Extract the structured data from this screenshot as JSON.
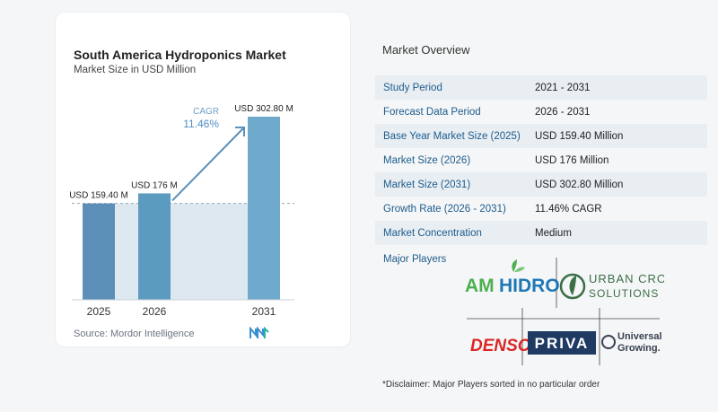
{
  "chart_data": {
    "type": "bar",
    "title": "South America Hydroponics Market",
    "subtitle": "Market Size in USD Million",
    "categories": [
      "2025",
      "2026",
      "2031"
    ],
    "values": [
      159.4,
      176,
      302.8
    ],
    "data_labels": [
      "USD 159.40 M",
      "USD 176 M",
      "USD 302.80 M"
    ],
    "cagr_label": "CAGR",
    "cagr_value": "11.46%",
    "ylim": [
      0,
      302.8
    ],
    "grid": false,
    "bar_colors": [
      "#5b8fb8",
      "#5b9bc0",
      "#6fa9cc"
    ]
  },
  "source": "Source:  Mordor Intelligence",
  "overview": {
    "title": "Market Overview",
    "rows": [
      {
        "label": "Study Period",
        "value": "2021 - 2031"
      },
      {
        "label": "Forecast Data Period",
        "value": "2026 - 2031"
      },
      {
        "label": "Base Year Market Size (2025)",
        "value": "USD 159.40 Million"
      },
      {
        "label": "Market Size (2026)",
        "value": "USD 176 Million"
      },
      {
        "label": "Market Size (2031)",
        "value": "USD 302.80 Million"
      },
      {
        "label": "Growth Rate (2026 - 2031)",
        "value": "11.46% CAGR"
      },
      {
        "label": "Market Concentration",
        "value": "Medium"
      }
    ],
    "players_label": "Major Players",
    "disclaimer": "*Disclaimer: Major Players sorted in no particular order"
  },
  "players": {
    "amhydro_a": "AM",
    "amhydro_b": "HIDRO",
    "ucs_line1": "URBAN CROP",
    "ucs_line2": "SOLUTIONS",
    "denso": "DENSO",
    "priva": "PRIVA",
    "ug_line1": "Universal",
    "ug_line2": "Growing."
  }
}
